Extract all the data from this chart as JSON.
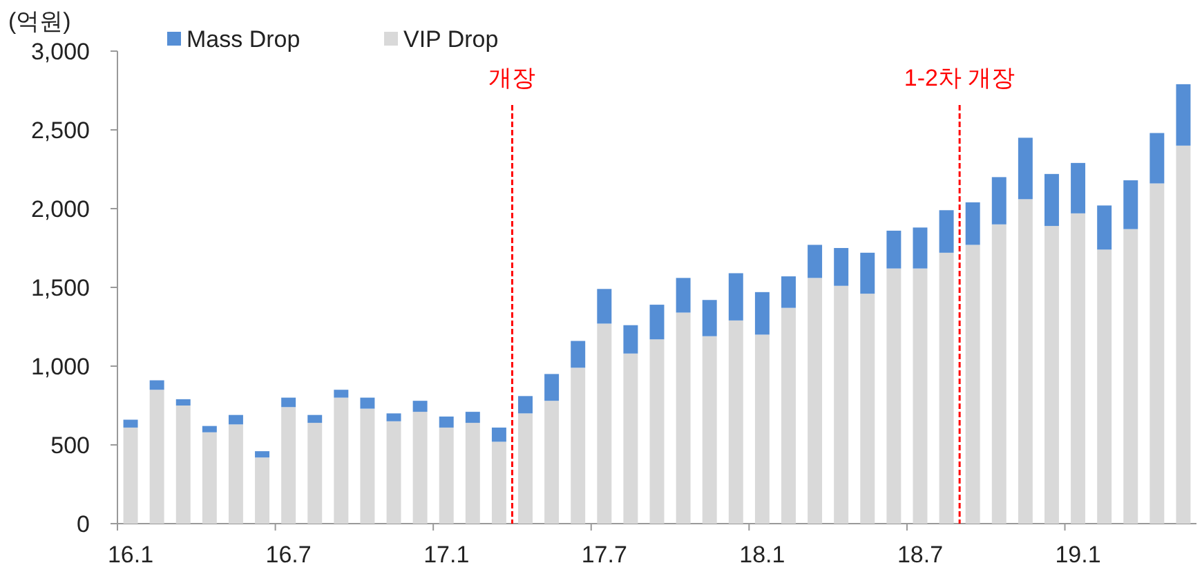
{
  "chart_data": {
    "type": "bar",
    "stacked": true,
    "ylabel": "(억원)",
    "categories": [
      "16.1",
      null,
      null,
      null,
      null,
      null,
      "16.7",
      null,
      null,
      null,
      null,
      null,
      "17.1",
      null,
      null,
      null,
      null,
      null,
      "17.7",
      null,
      null,
      null,
      null,
      null,
      "18.1",
      null,
      null,
      null,
      null,
      null,
      "18.7",
      null,
      null,
      null,
      null,
      null,
      "19.1",
      null,
      null,
      null,
      null
    ],
    "series": [
      {
        "name": "VIP Drop",
        "color": "#d9d9d9",
        "values": [
          610,
          850,
          750,
          580,
          630,
          420,
          740,
          640,
          800,
          730,
          650,
          710,
          610,
          640,
          520,
          700,
          780,
          990,
          1270,
          1080,
          1170,
          1340,
          1190,
          1290,
          1200,
          1370,
          1560,
          1510,
          1460,
          1620,
          1620,
          1720,
          1770,
          1900,
          2060,
          1890,
          1970,
          1740,
          1870,
          2160,
          2400
        ]
      },
      {
        "name": "Mass Drop",
        "color": "#558ed5",
        "values": [
          50,
          60,
          40,
          40,
          60,
          40,
          60,
          50,
          50,
          70,
          50,
          70,
          70,
          70,
          90,
          110,
          170,
          170,
          220,
          180,
          220,
          220,
          230,
          300,
          270,
          200,
          210,
          240,
          260,
          240,
          260,
          270,
          270,
          300,
          390,
          330,
          320,
          280,
          310,
          320,
          390
        ]
      }
    ],
    "ylim": [
      0,
      3000
    ],
    "yticks": [
      {
        "value": 0,
        "label": "0"
      },
      {
        "value": 500,
        "label": "500"
      },
      {
        "value": 1000,
        "label": "1,000"
      },
      {
        "value": 1500,
        "label": "1,500"
      },
      {
        "value": 2000,
        "label": "2,000"
      },
      {
        "value": 2500,
        "label": "2,500"
      },
      {
        "value": 3000,
        "label": "3,000"
      }
    ],
    "grid": false,
    "legend": "top",
    "annotations": [
      "개장",
      "1-2차 개장"
    ]
  }
}
